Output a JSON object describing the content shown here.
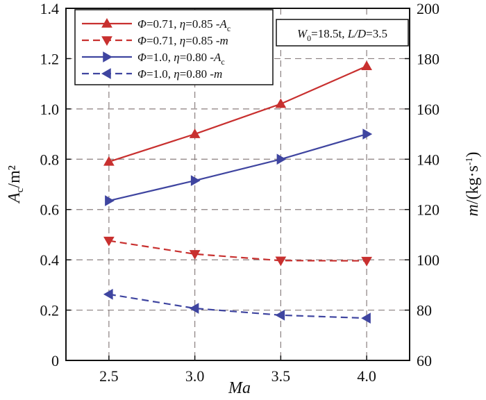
{
  "chart_data": {
    "type": "line",
    "x": [
      2.5,
      3.0,
      3.5,
      4.0
    ],
    "xticks": [
      "2.5",
      "3.0",
      "3.5",
      "4.0"
    ],
    "xlabel": "Ma",
    "xlim": [
      2.25,
      4.25
    ],
    "ylabel_left": "Ac/m²",
    "ylabel_left_main": "A",
    "ylabel_left_sub": "c",
    "ylabel_left_unit": "/m²",
    "ylim_left": [
      0,
      1.4
    ],
    "yticks_left": [
      "0",
      "0.2",
      "0.4",
      "0.6",
      "0.8",
      "1.0",
      "1.2",
      "1.4"
    ],
    "ylabel_right": "m/(kg·s⁻¹)",
    "ylabel_right_var": "m",
    "ylabel_right_unit": "/(kg·s",
    "ylabel_right_exp": "-1",
    "ylabel_right_close": ")",
    "ylim_right": [
      60,
      200
    ],
    "yticks_right": [
      "60",
      "80",
      "100",
      "120",
      "140",
      "160",
      "180",
      "200"
    ],
    "grid": true,
    "annotation": {
      "text": "W0=18.5t, L/D=3.5",
      "w": "W",
      "w_sub": "0",
      "w_val": "=18.5t, ",
      "ld": "L/D",
      "ld_val": "=3.5"
    },
    "series": [
      {
        "name": "Φ=0.71, η=0.85 -Ac",
        "phi": "Φ",
        "phi_val": "=0.71, ",
        "eta": "η",
        "eta_val": "=0.85",
        "suffix": " -A",
        "suffix_sub": "c",
        "axis": "left",
        "color": "#c8302f",
        "dashed": false,
        "marker": "triangle-up",
        "values": [
          0.79,
          0.9,
          1.02,
          1.17
        ]
      },
      {
        "name": "Φ=0.71, η=0.85 -m",
        "phi": "Φ",
        "phi_val": "=0.71, ",
        "eta": "η",
        "eta_val": "=0.85",
        "suffix": " -m",
        "suffix_sub": "",
        "axis": "right",
        "color": "#c8302f",
        "dashed": true,
        "marker": "triangle-down",
        "values": [
          107.6,
          102.3,
          99.7,
          99.6
        ]
      },
      {
        "name": "Φ=1.0, η=0.80 -Ac",
        "phi": "Φ",
        "phi_val": "=1.0, ",
        "eta": "η",
        "eta_val": "=0.80",
        "suffix": "   -A",
        "suffix_sub": "c",
        "axis": "left",
        "color": "#3f45a0",
        "dashed": false,
        "marker": "triangle-right",
        "values": [
          0.635,
          0.715,
          0.8,
          0.9
        ]
      },
      {
        "name": "Φ=1.0, η=0.80 -m",
        "phi": "Φ",
        "phi_val": "=1.0, ",
        "eta": "η",
        "eta_val": "=0.80",
        "suffix": "   -m",
        "suffix_sub": "",
        "axis": "right",
        "color": "#3f45a0",
        "dashed": true,
        "marker": "triangle-left",
        "values": [
          86.3,
          80.7,
          78.0,
          76.8
        ]
      }
    ]
  }
}
